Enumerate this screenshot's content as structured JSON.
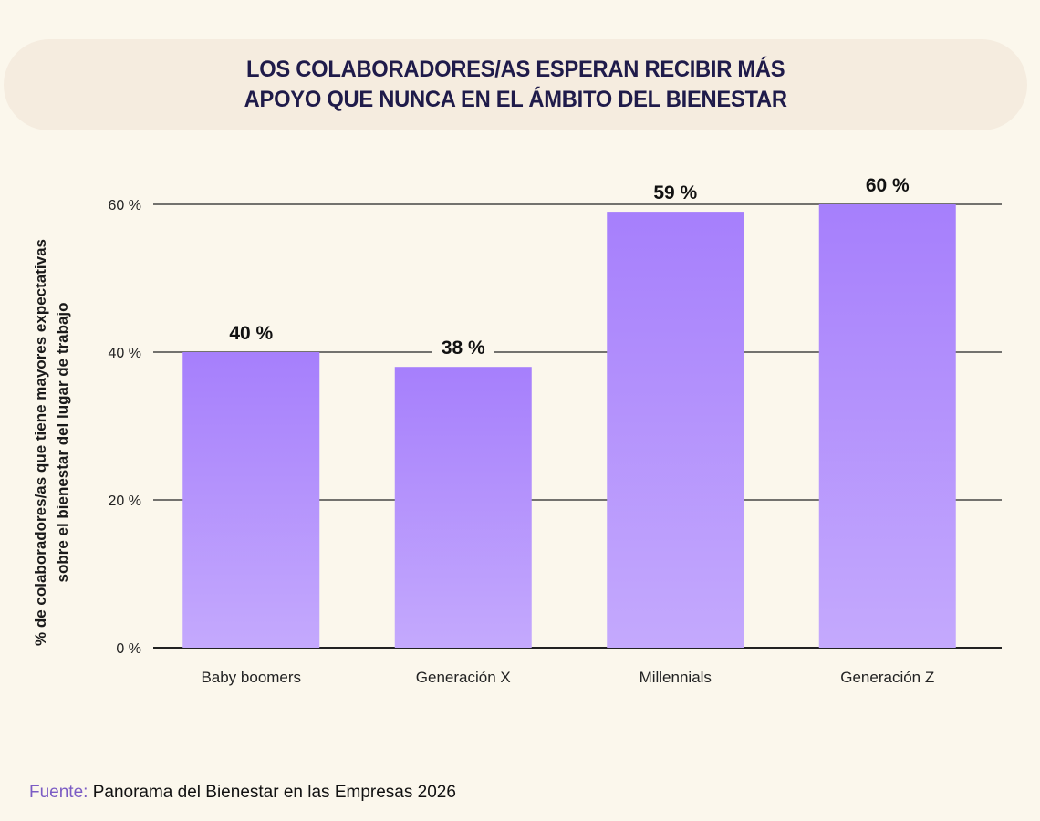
{
  "header": {
    "title_line1": "LOS COLABORADORES/AS ESPERAN RECIBIR MÁS",
    "title_line2": "APOYO QUE NUNCA EN EL ÁMBITO DEL BIENESTAR"
  },
  "chart_data": {
    "type": "bar",
    "title": "LOS COLABORADORES/AS ESPERAN RECIBIR MÁS APOYO QUE NUNCA EN EL ÁMBITO DEL BIENESTAR",
    "categories": [
      "Baby boomers",
      "Generación X",
      "Millennials",
      "Generación Z"
    ],
    "values": [
      40,
      38,
      59,
      60
    ],
    "data_labels": [
      "40 %",
      "38 %",
      "59 %",
      "60 %"
    ],
    "ylabel_line1": "% de colaboradores/as que tiene mayores expectativas",
    "ylabel_line2": "sobre el bienestar del lugar de trabajo",
    "xlabel": "",
    "ylim": [
      0,
      60
    ],
    "yticks": [
      0,
      20,
      40,
      60
    ],
    "ytick_labels": [
      "0 %",
      "20 %",
      "40 %",
      "60 %"
    ],
    "grid": true,
    "colors": {
      "bar_top": "#a67ffc",
      "bar_bottom": "#c4a9fd",
      "grid": "#222222"
    }
  },
  "footer": {
    "source_label": "Fuente:",
    "source_text": " Panorama del Bienestar en las Empresas 2026"
  }
}
